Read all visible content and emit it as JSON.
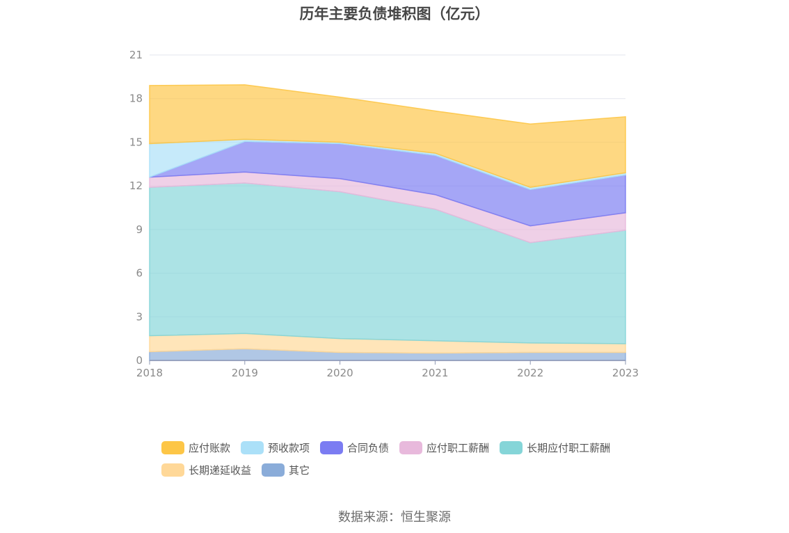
{
  "chart_data": {
    "type": "area",
    "stacked": true,
    "title": "历年主要负债堆积图（亿元）",
    "xlabel": "",
    "ylabel": "",
    "x": [
      "2018",
      "2019",
      "2020",
      "2021",
      "2022",
      "2023"
    ],
    "ylim": [
      0,
      21
    ],
    "yticks": [
      0,
      3,
      6,
      9,
      12,
      15,
      18,
      21
    ],
    "grid": true,
    "legend_position": "bottom",
    "series": [
      {
        "name": "其它",
        "color": "#8aacd9",
        "values": [
          0.6,
          0.8,
          0.55,
          0.5,
          0.55,
          0.55
        ]
      },
      {
        "name": "长期递延收益",
        "color": "#ffd898",
        "values": [
          1.1,
          1.05,
          0.95,
          0.85,
          0.65,
          0.6
        ]
      },
      {
        "name": "长期应付职工薪酬",
        "color": "#85d5d8",
        "values": [
          10.2,
          10.35,
          10.1,
          9.05,
          6.9,
          7.8
        ]
      },
      {
        "name": "应付职工薪酬",
        "color": "#e8b9dc",
        "values": [
          0.7,
          0.75,
          0.9,
          1.0,
          1.15,
          1.2
        ]
      },
      {
        "name": "合同负债",
        "color": "#7b7cf2",
        "values": [
          0.0,
          2.1,
          2.4,
          2.7,
          2.5,
          2.6
        ]
      },
      {
        "name": "预收款项",
        "color": "#abe0f8",
        "values": [
          2.3,
          0.15,
          0.1,
          0.15,
          0.15,
          0.15
        ]
      },
      {
        "name": "应付账款",
        "color": "#fdc647",
        "values": [
          4.0,
          3.75,
          3.1,
          2.9,
          4.35,
          3.85
        ]
      }
    ],
    "legend_order": [
      "应付账款",
      "预收款项",
      "合同负债",
      "应付职工薪酬",
      "长期应付职工薪酬",
      "长期递延收益",
      "其它"
    ]
  },
  "source_label": "数据来源：恒生聚源"
}
